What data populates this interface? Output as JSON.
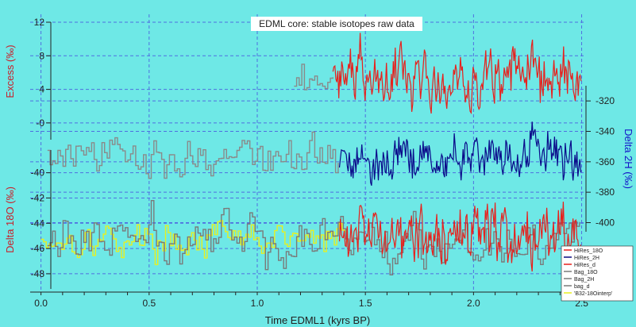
{
  "chart_data": {
    "type": "line",
    "title": "EDML core: stable isotopes raw data",
    "xlabel": "Time EDML1 (kyrs BP)",
    "xlim": [
      -0.05,
      2.52
    ],
    "x_ticks": [
      "0.0",
      "0.5",
      "1.0",
      "1.5",
      "2.0",
      "2.5"
    ],
    "grid": true,
    "background_color": "#6ee8e6",
    "grid_color": "#4f6fe0",
    "axes": {
      "excess": {
        "label": "Excess (‰)",
        "label_color": "#c8202a",
        "ylim": [
          -2,
          12
        ],
        "ticks": [
          "-0",
          "4",
          "8",
          "12"
        ],
        "position": "left-upper"
      },
      "delta18o": {
        "label": "Delta 18O (‰)",
        "label_color": "#c8202a",
        "ylim": [
          -49.2,
          -38.2
        ],
        "ticks": [
          "-48",
          "-46",
          "-44",
          "-42",
          "-40"
        ],
        "position": "left-lower"
      },
      "delta2h": {
        "label": "Delta 2H (‰)",
        "label_color": "#1414c8",
        "ylim": [
          -406,
          -310
        ],
        "ticks": [
          "-320",
          "-340",
          "-360",
          "-380",
          "-400"
        ],
        "position": "right"
      }
    },
    "legend": {
      "placement": "bottom-right",
      "entries": [
        {
          "name": "HiRes_18O",
          "color": "#e8201c"
        },
        {
          "name": "HiRes_2H",
          "color": "#0a0a80"
        },
        {
          "name": "HiRes_d",
          "color": "#e8201c"
        },
        {
          "name": "Bag_18O",
          "color": "#7a7a7a"
        },
        {
          "name": "Bag_2H",
          "color": "#7a7a7a"
        },
        {
          "name": "bag_d",
          "color": "#7a7a7a"
        },
        {
          "name": "'B32-18Ointerp'",
          "color": "#e8f020"
        }
      ]
    },
    "series": [
      {
        "name": "bag_d",
        "axis": "excess",
        "color": "#8a8a8a",
        "x_range": [
          1.17,
          1.35
        ],
        "mean": 4.2,
        "amplitude": 1.0
      },
      {
        "name": "HiRes_d",
        "axis": "excess",
        "color": "#e8201c",
        "x_range": [
          1.35,
          2.5
        ],
        "mean": 5.6,
        "amplitude": 1.6
      },
      {
        "name": "Bag_2H",
        "axis": "delta2h",
        "color": "#8a8a8a",
        "x_range": [
          0.03,
          1.38
        ],
        "mean": -357,
        "amplitude": 6
      },
      {
        "name": "HiRes_2H",
        "axis": "delta2h",
        "color": "#0a0a8a",
        "x_range": [
          1.38,
          2.5
        ],
        "mean": -356,
        "amplitude": 7
      },
      {
        "name": "Bag_18O",
        "axis": "delta18o",
        "color": "#7a7a7a",
        "x_range": [
          0.03,
          2.5
        ],
        "mean": -45.3,
        "amplitude": 0.9
      },
      {
        "name": "HiRes_18O",
        "axis": "delta18o",
        "color": "#e8201c",
        "x_range": [
          1.38,
          2.5
        ],
        "mean": -45.0,
        "amplitude": 1.1
      },
      {
        "name": "'B32-18Ointerp'",
        "axis": "delta18o",
        "color": "#e8f020",
        "x_range": [
          0.0,
          1.42
        ],
        "mean": -45.3,
        "amplitude": 0.6
      }
    ]
  }
}
